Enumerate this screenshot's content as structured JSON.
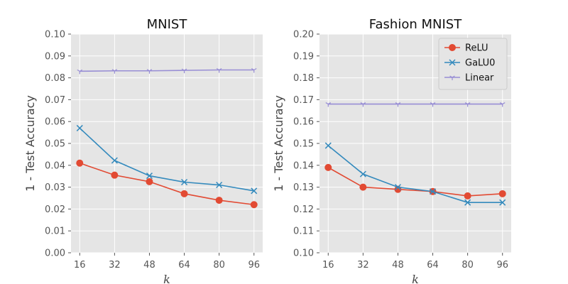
{
  "chart_data": [
    {
      "type": "line",
      "title": "MNIST",
      "xlabel": "k",
      "ylabel": "1 - Test Accuracy",
      "x": [
        16,
        32,
        48,
        64,
        80,
        96
      ],
      "xticks": [
        "16",
        "32",
        "48",
        "64",
        "80",
        "96"
      ],
      "ylim": [
        0.0,
        0.1
      ],
      "yticks": [
        "0.00",
        "0.01",
        "0.02",
        "0.03",
        "0.04",
        "0.05",
        "0.06",
        "0.07",
        "0.08",
        "0.09",
        "0.10"
      ],
      "grid": true,
      "series": [
        {
          "name": "ReLU",
          "color": "#E24A33",
          "marker": "circle",
          "values": [
            0.041,
            0.0355,
            0.0325,
            0.027,
            0.024,
            0.022
          ]
        },
        {
          "name": "GaLU0",
          "color": "#348ABD",
          "marker": "x",
          "values": [
            0.057,
            0.0422,
            0.0352,
            0.0323,
            0.031,
            0.0283
          ]
        },
        {
          "name": "Linear",
          "color": "#988ED5",
          "marker": "tri_down",
          "values": [
            0.083,
            0.0832,
            0.0832,
            0.0834,
            0.0836,
            0.0836
          ]
        }
      ]
    },
    {
      "type": "line",
      "title": "Fashion MNIST",
      "xlabel": "k",
      "ylabel": "1 - Test Accuracy",
      "x": [
        16,
        32,
        48,
        64,
        80,
        96
      ],
      "xticks": [
        "16",
        "32",
        "48",
        "64",
        "80",
        "96"
      ],
      "ylim": [
        0.1,
        0.2
      ],
      "yticks": [
        "0.10",
        "0.11",
        "0.12",
        "0.13",
        "0.14",
        "0.15",
        "0.16",
        "0.17",
        "0.18",
        "0.19",
        "0.20"
      ],
      "grid": true,
      "legend": {
        "position": "top-right",
        "entries": [
          "ReLU",
          "GaLU0",
          "Linear"
        ]
      },
      "series": [
        {
          "name": "ReLU",
          "color": "#E24A33",
          "marker": "circle",
          "values": [
            0.139,
            0.13,
            0.129,
            0.128,
            0.126,
            0.127
          ]
        },
        {
          "name": "GaLU0",
          "color": "#348ABD",
          "marker": "x",
          "values": [
            0.149,
            0.136,
            0.13,
            0.128,
            0.123,
            0.123
          ]
        },
        {
          "name": "Linear",
          "color": "#988ED5",
          "marker": "tri_down",
          "values": [
            0.168,
            0.168,
            0.168,
            0.168,
            0.168,
            0.168
          ]
        }
      ]
    }
  ]
}
